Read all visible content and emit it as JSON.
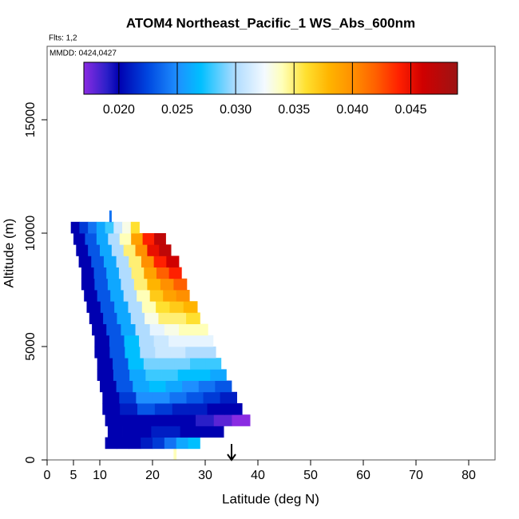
{
  "chart_data": {
    "type": "curtain",
    "title": "ATOM4 Northeast_Pacific_1 WS_Abs_600nm",
    "flights": "Flts: 1,2",
    "dates": "MMDD: 0424,0427",
    "x_label": "Latitude (deg N)",
    "y_label": "Altitude (m)",
    "xlim": [
      0,
      85
    ],
    "xticks": [
      0,
      5,
      10,
      20,
      30,
      40,
      50,
      60,
      70,
      80
    ],
    "ylim": [
      0,
      18240
    ],
    "yticks": [
      0,
      5000,
      10000,
      15000
    ],
    "marker_lat": 35,
    "clim": [
      0.017,
      0.049
    ],
    "cticks": [
      {
        "value": 0.02,
        "label": "0.020"
      },
      {
        "value": 0.025,
        "label": "0.025"
      },
      {
        "value": 0.03,
        "label": "0.030"
      },
      {
        "value": 0.035,
        "label": "0.035"
      },
      {
        "value": 0.04,
        "label": "0.040"
      },
      {
        "value": 0.045,
        "label": "0.045"
      }
    ],
    "colorscale": [
      [
        0.017,
        "#8a2be2"
      ],
      [
        0.019,
        "#2a1fc8"
      ],
      [
        0.02,
        "#0000b0"
      ],
      [
        0.0225,
        "#0048e0"
      ],
      [
        0.025,
        "#1e8fff"
      ],
      [
        0.027,
        "#00bfff"
      ],
      [
        0.03,
        "#b0dcff"
      ],
      [
        0.0325,
        "#f4faff"
      ],
      [
        0.034,
        "#ffffb8"
      ],
      [
        0.036,
        "#ffe030"
      ],
      [
        0.038,
        "#ffb400"
      ],
      [
        0.04,
        "#ff9000"
      ],
      [
        0.042,
        "#ff6000"
      ],
      [
        0.044,
        "#ff2000"
      ],
      [
        0.046,
        "#d00000"
      ],
      [
        0.049,
        "#9c1414"
      ]
    ],
    "rows": [
      {
        "alt": [
          0,
          500
        ],
        "lat": [
          24,
          24.5
        ],
        "values": [
          0.034
        ]
      },
      {
        "alt": [
          500,
          1000
        ],
        "lat": [
          11,
          29
        ],
        "values": [
          0.02,
          0.02,
          0.02,
          0.021,
          0.022,
          0.024,
          0.026,
          0.027
        ]
      },
      {
        "alt": [
          1000,
          1500
        ],
        "lat": [
          11.5,
          33.5
        ],
        "values": [
          0.02,
          0.02,
          0.02,
          0.021,
          0.021,
          0.02,
          0.02,
          0.02
        ]
      },
      {
        "alt": [
          1500,
          2000
        ],
        "lat": [
          11,
          38.5
        ],
        "values": [
          0.02,
          0.02,
          0.02,
          0.02,
          0.02,
          0.019,
          0.018,
          0.017
        ]
      },
      {
        "alt": [
          2000,
          2500
        ],
        "lat": [
          10.5,
          37
        ],
        "values": [
          0.02,
          0.021,
          0.023,
          0.022,
          0.021,
          0.021,
          0.02,
          0.02
        ]
      },
      {
        "alt": [
          2500,
          3000
        ],
        "lat": [
          10.5,
          36
        ],
        "values": [
          0.02,
          0.022,
          0.025,
          0.025,
          0.024,
          0.023,
          0.022,
          0.021
        ]
      },
      {
        "alt": [
          3000,
          3500
        ],
        "lat": [
          10,
          35
        ],
        "values": [
          0.02,
          0.023,
          0.026,
          0.027,
          0.026,
          0.025,
          0.024,
          0.023
        ]
      },
      {
        "alt": [
          3500,
          4000
        ],
        "lat": [
          9.5,
          34
        ],
        "values": [
          0.02,
          0.023,
          0.026,
          0.028,
          0.028,
          0.027,
          0.027,
          0.026
        ]
      },
      {
        "alt": [
          4000,
          4500
        ],
        "lat": [
          9.5,
          33
        ],
        "values": [
          0.02,
          0.023,
          0.027,
          0.029,
          0.029,
          0.029,
          0.028,
          0.028
        ]
      },
      {
        "alt": [
          4500,
          5000
        ],
        "lat": [
          9,
          32
        ],
        "values": [
          0.02,
          0.023,
          0.027,
          0.03,
          0.031,
          0.031,
          0.03,
          0.03
        ]
      },
      {
        "alt": [
          5000,
          5500
        ],
        "lat": [
          9,
          31.5
        ],
        "values": [
          0.02,
          0.023,
          0.027,
          0.03,
          0.031,
          0.032,
          0.032,
          0.032
        ]
      },
      {
        "alt": [
          5500,
          6000
        ],
        "lat": [
          8.5,
          30.5
        ],
        "values": [
          0.02,
          0.023,
          0.026,
          0.03,
          0.032,
          0.033,
          0.034,
          0.034
        ]
      },
      {
        "alt": [
          6000,
          6500
        ],
        "lat": [
          8,
          29
        ],
        "values": [
          0.02,
          0.023,
          0.026,
          0.03,
          0.033,
          0.035,
          0.035,
          0.036
        ]
      },
      {
        "alt": [
          6500,
          7000
        ],
        "lat": [
          7.5,
          28.5
        ],
        "values": [
          0.02,
          0.023,
          0.026,
          0.03,
          0.034,
          0.036,
          0.037,
          0.038
        ]
      },
      {
        "alt": [
          7000,
          7500
        ],
        "lat": [
          7,
          27
        ],
        "values": [
          0.02,
          0.023,
          0.026,
          0.03,
          0.034,
          0.037,
          0.039,
          0.04
        ]
      },
      {
        "alt": [
          7500,
          8000
        ],
        "lat": [
          6.5,
          26.5
        ],
        "values": [
          0.02,
          0.023,
          0.026,
          0.03,
          0.035,
          0.038,
          0.04,
          0.042
        ]
      },
      {
        "alt": [
          8000,
          8500
        ],
        "lat": [
          6.5,
          25.5
        ],
        "values": [
          0.02,
          0.023,
          0.026,
          0.03,
          0.035,
          0.039,
          0.042,
          0.044
        ]
      },
      {
        "alt": [
          8500,
          9000
        ],
        "lat": [
          6,
          25
        ],
        "values": [
          0.02,
          0.023,
          0.026,
          0.03,
          0.035,
          0.04,
          0.044,
          0.046
        ]
      },
      {
        "alt": [
          9000,
          9500
        ],
        "lat": [
          5.5,
          23.5
        ],
        "values": [
          0.02,
          0.023,
          0.026,
          0.03,
          0.035,
          0.04,
          0.045,
          0.047
        ]
      },
      {
        "alt": [
          9500,
          10000
        ],
        "lat": [
          5,
          22.5
        ],
        "values": [
          0.02,
          0.023,
          0.026,
          0.03,
          0.034,
          0.039,
          0.044,
          0.047
        ]
      },
      {
        "alt": [
          10000,
          10500
        ],
        "lat": [
          4.5,
          17.5
        ],
        "values": [
          0.02,
          0.022,
          0.024,
          0.026,
          0.028,
          0.031,
          0.033,
          0.036
        ]
      },
      {
        "alt": [
          10500,
          11000
        ],
        "lat": [
          11.8,
          12.2
        ],
        "values": [
          0.024
        ]
      }
    ]
  }
}
